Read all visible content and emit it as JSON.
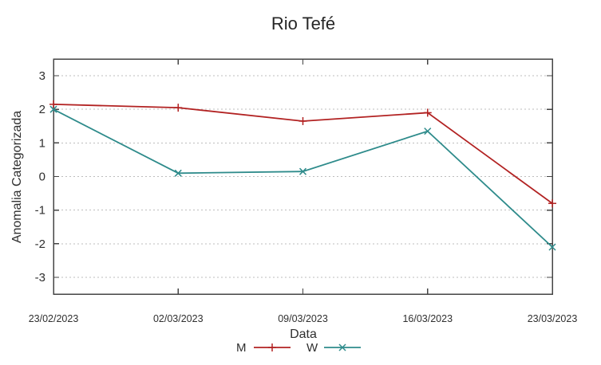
{
  "chart_data": {
    "type": "line",
    "title": "Rio Tefé",
    "xlabel": "Data",
    "ylabel": "Anomalia Categorizada",
    "categories": [
      "23/02/2023",
      "02/03/2023",
      "09/03/2023",
      "16/03/2023",
      "23/03/2023"
    ],
    "series": [
      {
        "name": "M",
        "color": "#b22222",
        "marker": "plus",
        "values": [
          2.15,
          2.05,
          1.65,
          1.9,
          -0.8
        ]
      },
      {
        "name": "W",
        "color": "#2e8b8b",
        "marker": "x",
        "values": [
          2.0,
          0.1,
          0.15,
          1.35,
          -2.1
        ]
      }
    ],
    "ylim": [
      -3.5,
      3.5
    ],
    "yticks": [
      3,
      2,
      1,
      0,
      -1,
      -2,
      -3
    ],
    "grid": "horizontal-dashed",
    "legend_position": "bottom-center",
    "colors": {
      "axis": "#444444",
      "grid": "#bdbdbd",
      "text": "#2f2f2f",
      "background": "#ffffff"
    }
  }
}
